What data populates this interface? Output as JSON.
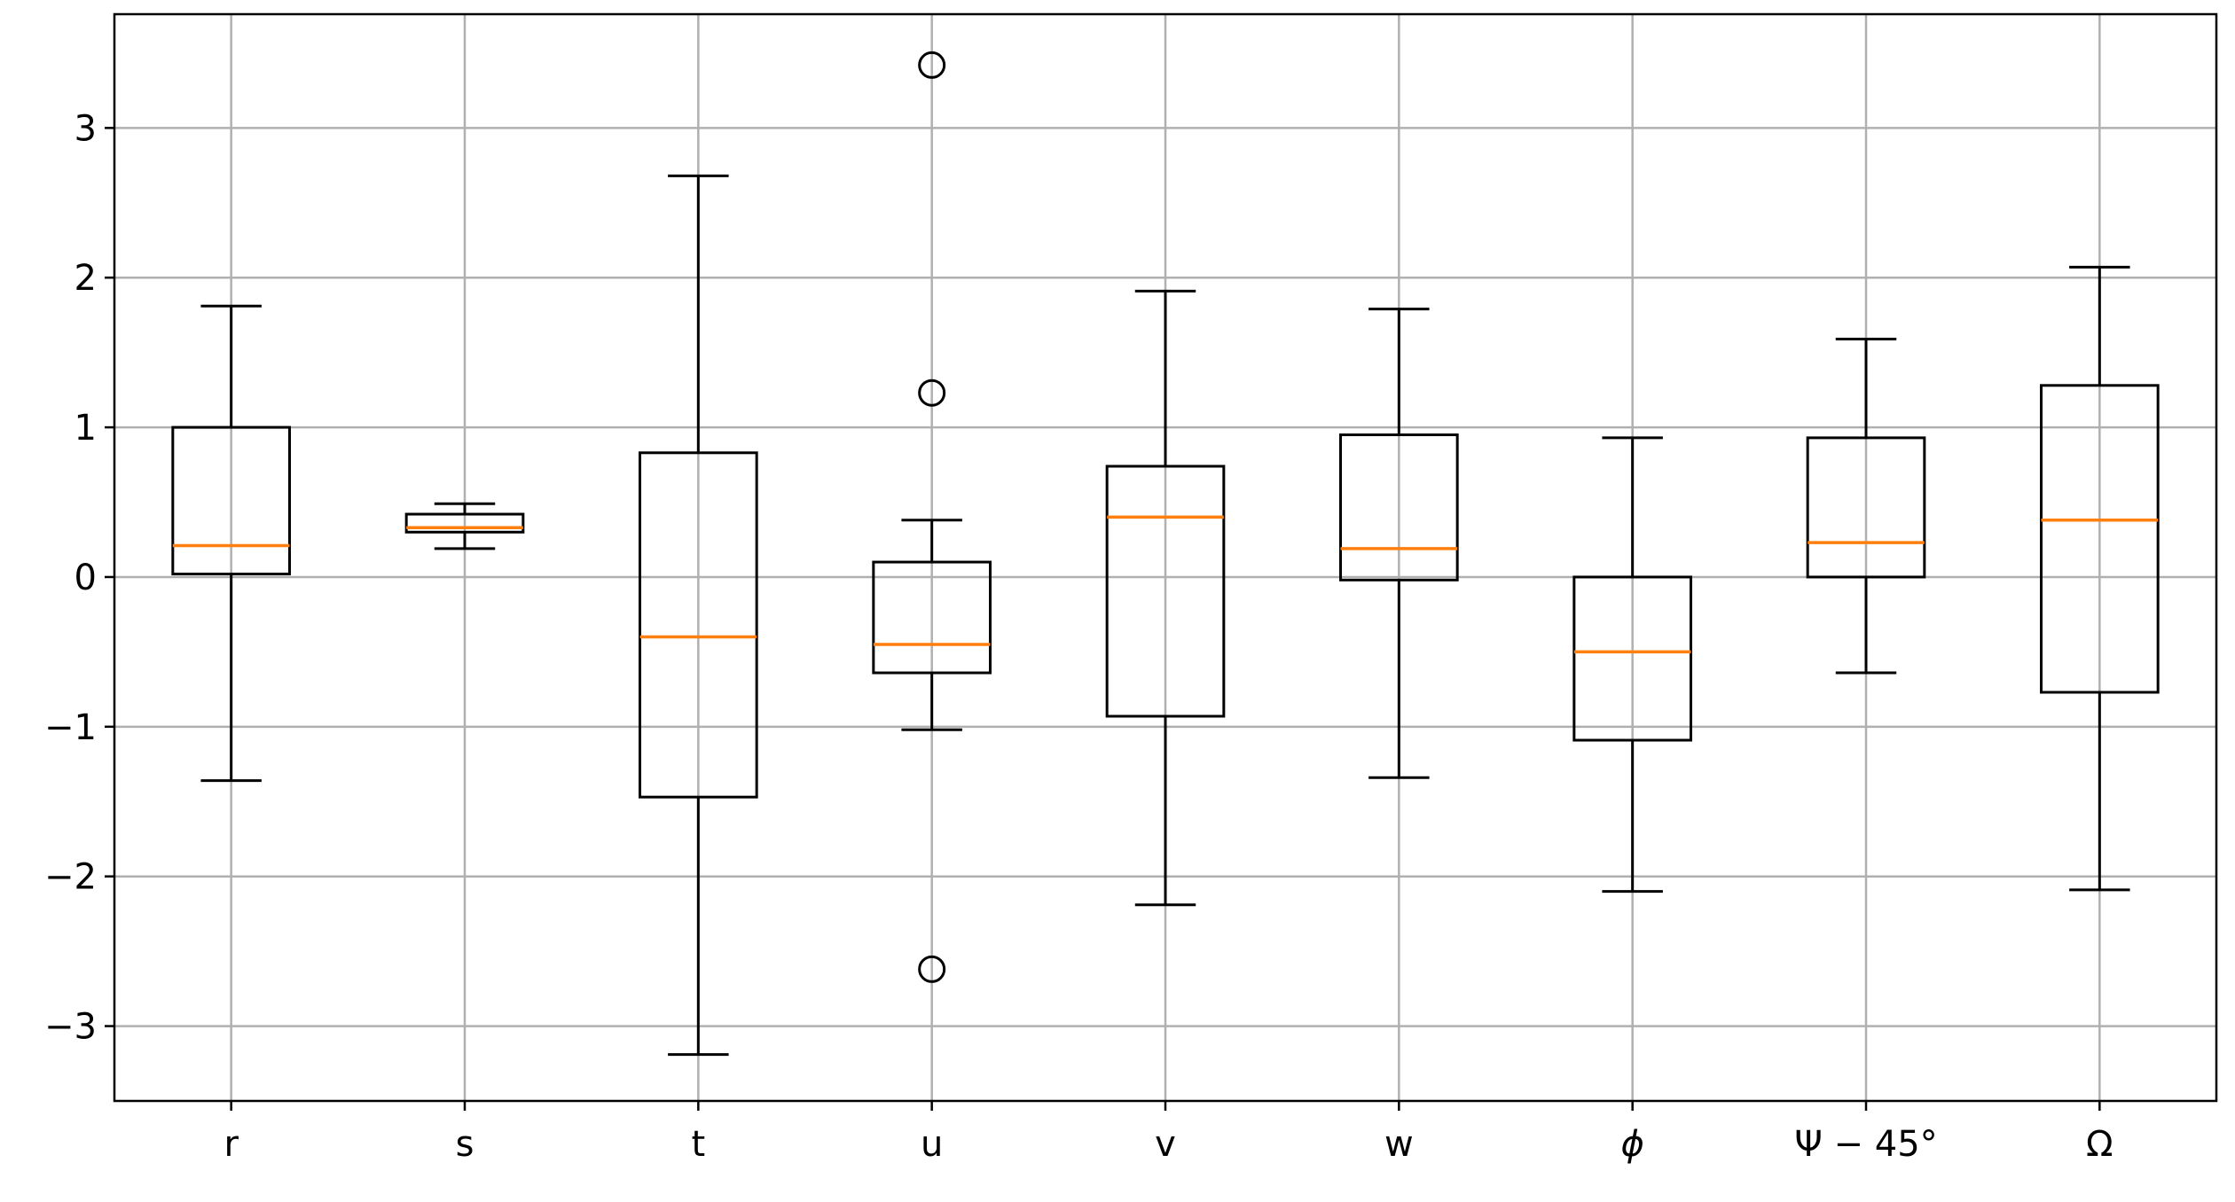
{
  "chart_data": {
    "type": "boxplot",
    "categories": [
      "r",
      "s",
      "t",
      "u",
      "v",
      "w",
      "ϕ",
      "Ψ − 45°",
      "Ω"
    ],
    "boxes": [
      {
        "whislo": -1.36,
        "q1": 0.02,
        "med": 0.21,
        "q3": 1.0,
        "whishi": 1.81,
        "fliers": []
      },
      {
        "whislo": 0.19,
        "q1": 0.3,
        "med": 0.33,
        "q3": 0.42,
        "whishi": 0.49,
        "fliers": []
      },
      {
        "whislo": -3.19,
        "q1": -1.47,
        "med": -0.4,
        "q3": 0.83,
        "whishi": 2.68,
        "fliers": []
      },
      {
        "whislo": -1.02,
        "q1": -0.64,
        "med": -0.45,
        "q3": 0.1,
        "whishi": 0.38,
        "fliers": [
          3.42,
          1.23,
          -2.62
        ]
      },
      {
        "whislo": -2.19,
        "q1": -0.93,
        "med": 0.4,
        "q3": 0.74,
        "whishi": 1.91,
        "fliers": []
      },
      {
        "whislo": -1.34,
        "q1": -0.02,
        "med": 0.19,
        "q3": 0.95,
        "whishi": 1.79,
        "fliers": []
      },
      {
        "whislo": -2.1,
        "q1": -1.09,
        "med": -0.5,
        "q3": 0.0,
        "whishi": 0.93,
        "fliers": []
      },
      {
        "whislo": -0.64,
        "q1": 0.0,
        "med": 0.23,
        "q3": 0.93,
        "whishi": 1.59,
        "fliers": []
      },
      {
        "whislo": -2.09,
        "q1": -0.77,
        "med": 0.38,
        "q3": 1.28,
        "whishi": 2.07,
        "fliers": []
      }
    ],
    "box_color": "#000000",
    "median_color": "#ff7f0e",
    "ylim": [
      -3.5,
      3.76
    ],
    "yticks": [
      {
        "value": -3,
        "label": "−3"
      },
      {
        "value": -2,
        "label": "−2"
      },
      {
        "value": -1,
        "label": "−1"
      },
      0,
      1,
      2,
      3
    ],
    "grid": true
  }
}
